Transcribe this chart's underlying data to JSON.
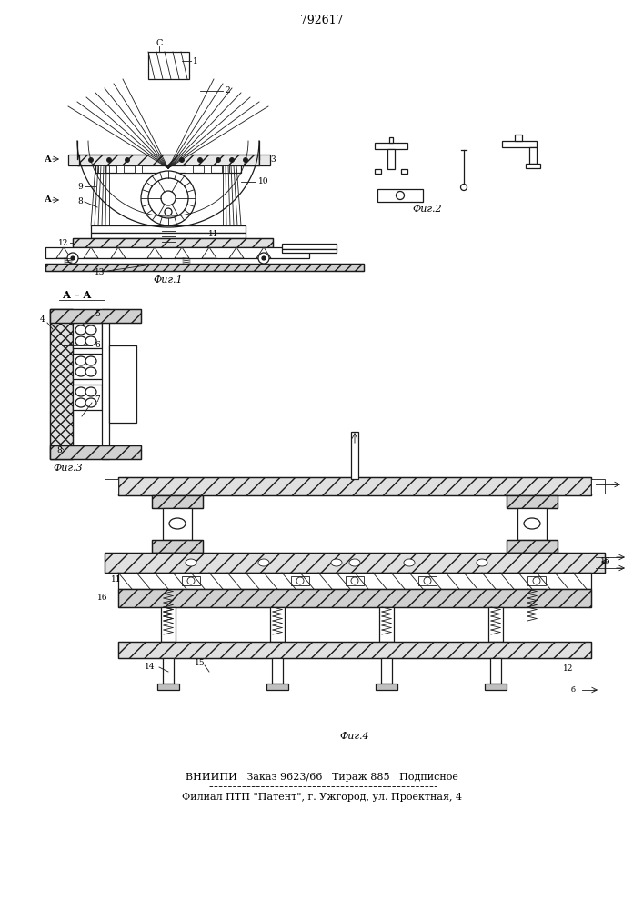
{
  "patent_number": "792617",
  "bg": "#f5f5f0",
  "lc": "#1a1a1a",
  "footer_line1": "ВНИИПИ   Заказ 9623/66   Тираж 885   Подписное",
  "footer_line2": "Филиал ПТП \"Патент\", г. Ужгород, ул. Проектная, 4",
  "fig1_label": "Фиг.1",
  "fig2_label": "Фиг.2",
  "fig3_label": "Фиг.3",
  "fig4_label": "Фиг.4"
}
